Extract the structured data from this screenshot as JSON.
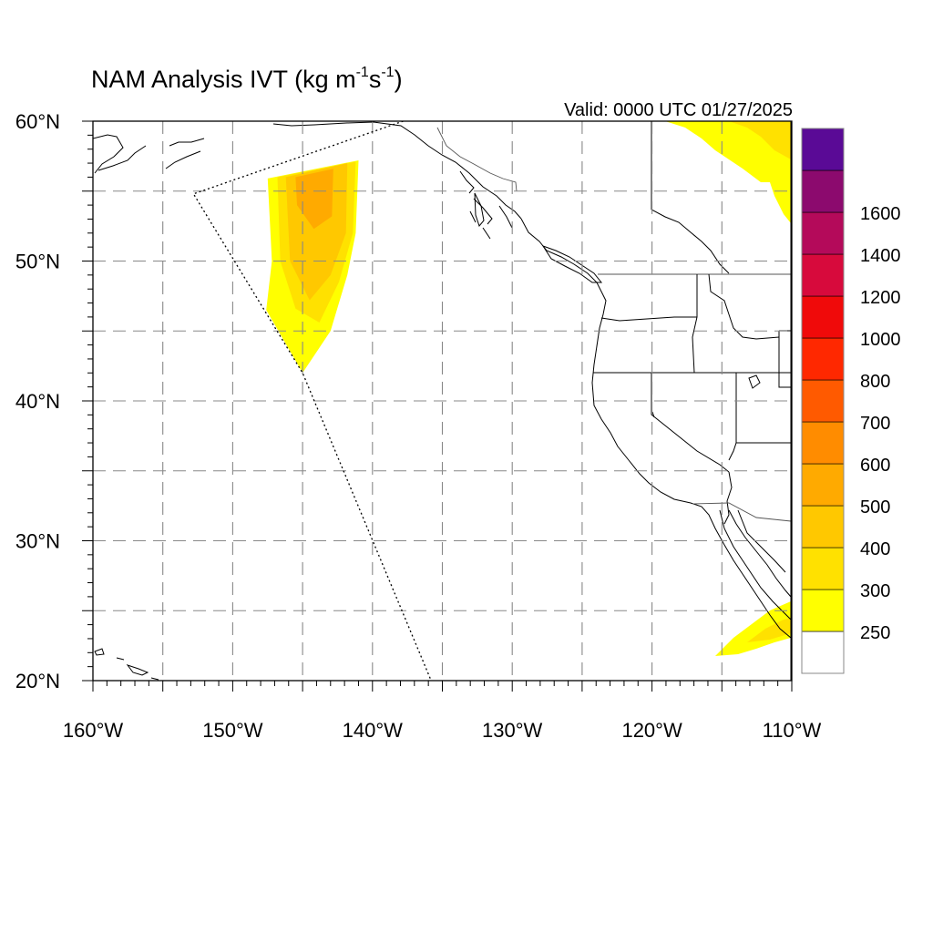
{
  "title": {
    "main": "NAM Analysis IVT",
    "units_open": "(kg m",
    "exp1": "-1",
    "units_mid": "s",
    "exp2": "-1",
    "units_close": ")"
  },
  "valid_text": "Valid: 0000 UTC 01/27/2025",
  "map": {
    "lon_range": [
      -160,
      -110
    ],
    "lat_range": [
      20,
      60
    ],
    "lon_labels": [
      {
        "lon": -160,
        "text": "160°W"
      },
      {
        "lon": -150,
        "text": "150°W"
      },
      {
        "lon": -140,
        "text": "140°W"
      },
      {
        "lon": -130,
        "text": "130°W"
      },
      {
        "lon": -120,
        "text": "120°W"
      },
      {
        "lon": -110,
        "text": "110°W"
      }
    ],
    "lat_labels": [
      {
        "lat": 60,
        "text": "60°N"
      },
      {
        "lat": 50,
        "text": "50°N"
      },
      {
        "lat": 40,
        "text": "40°N"
      },
      {
        "lat": 30,
        "text": "30°N"
      },
      {
        "lat": 20,
        "text": "20°N"
      }
    ],
    "gridlines": "dashed every 5°",
    "ivt_field": {
      "domain_edge": [
        [
          -137.8,
          60.0
        ],
        [
          -152.8,
          54.8
        ],
        [
          -145.0,
          42.0
        ],
        [
          -135.8,
          20.0
        ]
      ],
      "plume_levels": [
        {
          "min": 250,
          "ring": [
            [
              -147.5,
              55.9
            ],
            [
              -141.0,
              57.2
            ],
            [
              -141.2,
              52.0
            ],
            [
              -141.8,
              49.0
            ],
            [
              -143.0,
              45.0
            ],
            [
              -145.0,
              42.0
            ],
            [
              -147.6,
              46.5
            ],
            [
              -147.2,
              50.0
            ]
          ]
        },
        {
          "min": 300,
          "ring": [
            [
              -146.8,
              56.0
            ],
            [
              -141.2,
              57.1
            ],
            [
              -141.4,
              52.0
            ],
            [
              -142.4,
              48.5
            ],
            [
              -143.8,
              45.6
            ],
            [
              -145.5,
              46.6
            ],
            [
              -146.6,
              50.0
            ]
          ]
        },
        {
          "min": 400,
          "ring": [
            [
              -146.2,
              56.0
            ],
            [
              -141.8,
              57.0
            ],
            [
              -141.9,
              52.0
            ],
            [
              -143.0,
              49.0
            ],
            [
              -144.5,
              47.2
            ],
            [
              -145.9,
              50.0
            ]
          ]
        },
        {
          "min": 500,
          "ring": [
            [
              -145.5,
              56.0
            ],
            [
              -142.8,
              56.6
            ],
            [
              -142.9,
              53.2
            ],
            [
              -144.2,
              52.3
            ],
            [
              -145.4,
              54.0
            ]
          ]
        }
      ],
      "ne_corner_level_min": 250,
      "gulf_california_level_min": 250
    }
  },
  "colorbar": {
    "colors": [
      "#ffffff",
      "#ffff00",
      "#ffe100",
      "#ffc800",
      "#ffaa00",
      "#ff8c00",
      "#ff5a00",
      "#ff2800",
      "#f00a0a",
      "#d70a3c",
      "#b40a5a",
      "#8c0a6e",
      "#5a0a96"
    ],
    "labels": [
      {
        "index": 1,
        "text": "250"
      },
      {
        "index": 2,
        "text": "300"
      },
      {
        "index": 3,
        "text": "400"
      },
      {
        "index": 4,
        "text": "500"
      },
      {
        "index": 5,
        "text": "600"
      },
      {
        "index": 6,
        "text": "700"
      },
      {
        "index": 7,
        "text": "800"
      },
      {
        "index": 8,
        "text": "1000"
      },
      {
        "index": 9,
        "text": "1200"
      },
      {
        "index": 10,
        "text": "1400"
      },
      {
        "index": 11,
        "text": "1600"
      }
    ]
  }
}
